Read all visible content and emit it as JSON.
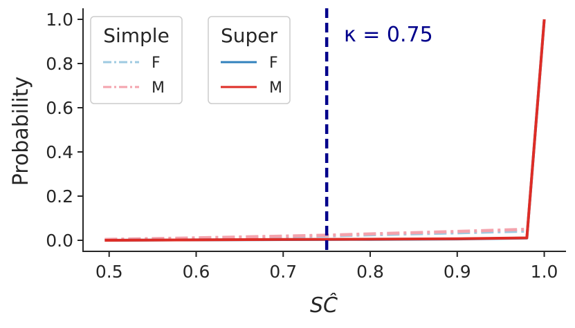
{
  "chart_data": {
    "type": "line",
    "xlabel": "SĈ",
    "ylabel": "Probability",
    "xlim": [
      0.47,
      1.025
    ],
    "ylim": [
      -0.05,
      1.05
    ],
    "xticks": [
      "0.5",
      "0.6",
      "0.7",
      "0.8",
      "0.9",
      "1.0"
    ],
    "yticks": [
      "0.0",
      "0.2",
      "0.4",
      "0.6",
      "0.8",
      "1.0"
    ],
    "grid": false,
    "threshold": {
      "x": 0.75,
      "label": "κ = 0.75",
      "color": "#00008b"
    },
    "legends": [
      {
        "title": "Simple",
        "entries": [
          {
            "label": "F",
            "series": "simple_F"
          },
          {
            "label": "M",
            "series": "simple_M"
          }
        ]
      },
      {
        "title": "Super",
        "entries": [
          {
            "label": "F",
            "series": "super_F"
          },
          {
            "label": "M",
            "series": "super_M"
          }
        ]
      }
    ],
    "series": [
      {
        "key": "simple_F",
        "color": "#9ecae1",
        "style": "dashdot",
        "x": [
          0.495,
          0.6,
          0.7,
          0.75,
          0.8,
          0.9,
          0.98
        ],
        "y": [
          0.003,
          0.009,
          0.016,
          0.02,
          0.025,
          0.034,
          0.042
        ]
      },
      {
        "key": "simple_M",
        "color": "#f4a3ad",
        "style": "dashdot",
        "x": [
          0.495,
          0.6,
          0.7,
          0.75,
          0.8,
          0.9,
          0.98
        ],
        "y": [
          0.004,
          0.011,
          0.019,
          0.023,
          0.029,
          0.04,
          0.05
        ]
      },
      {
        "key": "super_F",
        "color": "#3182bd",
        "style": "solid",
        "x": [
          0.495,
          0.6,
          0.7,
          0.8,
          0.9,
          0.98,
          1.0
        ],
        "y": [
          0.0,
          0.002,
          0.003,
          0.004,
          0.006,
          0.01,
          1.0
        ]
      },
      {
        "key": "super_M",
        "color": "#de2d26",
        "style": "solid",
        "x": [
          0.495,
          0.6,
          0.7,
          0.8,
          0.9,
          0.98,
          1.0
        ],
        "y": [
          0.0,
          0.002,
          0.004,
          0.005,
          0.007,
          0.011,
          1.0
        ]
      }
    ]
  }
}
